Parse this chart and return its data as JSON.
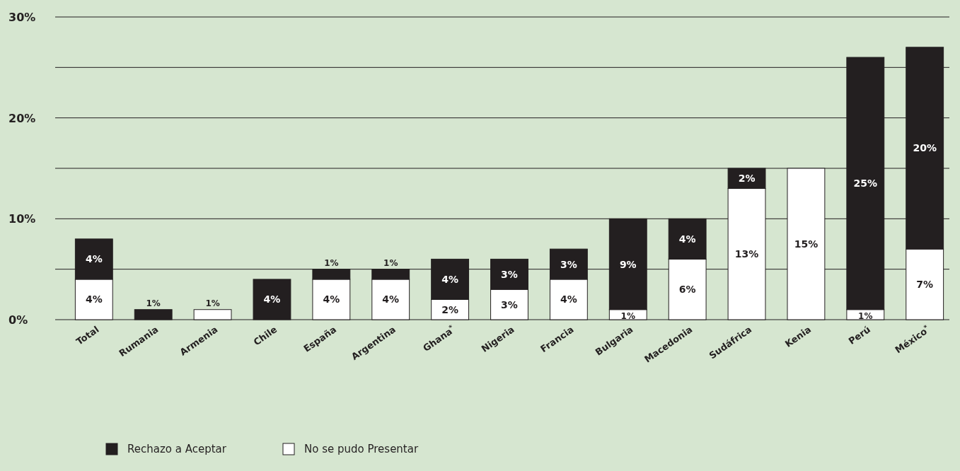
{
  "chart_data": {
    "type": "bar",
    "stacked": true,
    "categories": [
      "Total",
      "Rumania",
      "Armenia",
      "Chile",
      "España",
      "Argentina",
      "Ghana$^{*}$",
      "Nigeria",
      "Francia",
      "Bulgaria",
      "Macedonia",
      "Sudáfrica",
      "Kenia",
      "Perú",
      "México$^{*}$"
    ],
    "series": [
      {
        "name": "No se pudo Presentar",
        "color": "#ffffff",
        "values": [
          4,
          null,
          1,
          null,
          4,
          4,
          2,
          3,
          4,
          1,
          6,
          13,
          15,
          1,
          7
        ],
        "value_labels": [
          "4%",
          null,
          "1%",
          null,
          "4%",
          "4%",
          "2%",
          "3%",
          "4%",
          "1%",
          "6%",
          "13%",
          "15%",
          "1%",
          "7%"
        ]
      },
      {
        "name": "Rechazo a Aceptar",
        "color": "#231f20",
        "values": [
          4,
          1,
          null,
          4,
          1,
          1,
          4,
          3,
          3,
          9,
          4,
          2,
          null,
          25,
          20
        ],
        "value_labels": [
          "4%",
          "1%",
          null,
          "4%",
          "1%",
          "1%",
          "4%",
          "3%",
          "3%",
          "9%",
          "4%",
          "2%",
          null,
          "25%",
          "20%"
        ]
      }
    ],
    "ylim": [
      0,
      30
    ],
    "yticks": [
      {
        "value": 0,
        "label": "0%"
      },
      {
        "value": 5,
        "label": null
      },
      {
        "value": 10,
        "label": "10%"
      },
      {
        "value": 15,
        "label": null
      },
      {
        "value": 20,
        "label": "20%"
      },
      {
        "value": 25,
        "label": null
      },
      {
        "value": 30,
        "label": "30%"
      }
    ],
    "grid": "y",
    "legend": "bottom left"
  }
}
